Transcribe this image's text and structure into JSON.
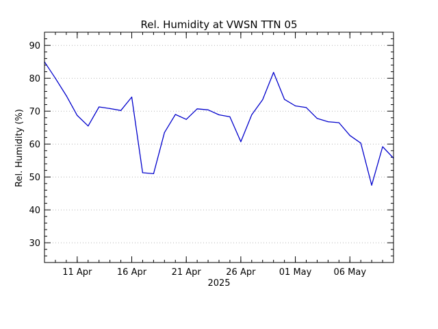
{
  "chart_data": {
    "type": "line",
    "title": "Rel. Humidity at VWSN TTN 05",
    "xlabel": "2025",
    "ylabel": "Rel. Humidity (%)",
    "ylim": [
      24,
      94
    ],
    "yticks": [
      30,
      40,
      50,
      60,
      70,
      80,
      90
    ],
    "grid": true,
    "line_color": "#0000cc",
    "x_start": "2025-04-08",
    "x_end": "2025-05-10",
    "xticks": [
      {
        "date": "2025-04-11",
        "label": "11 Apr"
      },
      {
        "date": "2025-04-16",
        "label": "16 Apr"
      },
      {
        "date": "2025-04-21",
        "label": "21 Apr"
      },
      {
        "date": "2025-04-26",
        "label": "26 Apr"
      },
      {
        "date": "2025-05-01",
        "label": "01 May"
      },
      {
        "date": "2025-05-06",
        "label": "06 May"
      }
    ],
    "series": [
      {
        "x": [
          "2025-04-08",
          "2025-04-09",
          "2025-04-10",
          "2025-04-11",
          "2025-04-12",
          "2025-04-13",
          "2025-04-14",
          "2025-04-15",
          "2025-04-16",
          "2025-04-17",
          "2025-04-18",
          "2025-04-19",
          "2025-04-20",
          "2025-04-21",
          "2025-04-22",
          "2025-04-23",
          "2025-04-24",
          "2025-04-25",
          "2025-04-26",
          "2025-04-27",
          "2025-04-28",
          "2025-04-29",
          "2025-04-30",
          "2025-05-01",
          "2025-05-02",
          "2025-05-03",
          "2025-05-04",
          "2025-05-05",
          "2025-05-06",
          "2025-05-07",
          "2025-05-08",
          "2025-05-09",
          "2025-05-10"
        ],
        "y": [
          85.0,
          80.0,
          74.7,
          68.7,
          65.5,
          71.3,
          70.8,
          70.2,
          74.3,
          51.3,
          51.0,
          63.5,
          69.0,
          67.5,
          70.7,
          70.4,
          68.9,
          68.3,
          60.7,
          68.9,
          73.5,
          81.8,
          73.6,
          71.6,
          71.1,
          67.8,
          66.8,
          66.5,
          62.6,
          60.3,
          47.5,
          59.2,
          55.7
        ]
      }
    ]
  }
}
